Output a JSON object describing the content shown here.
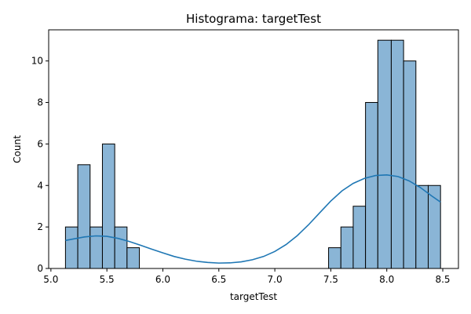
{
  "chart_data": {
    "type": "bar",
    "title": "Histograma: targetTest",
    "xlabel": "targetTest",
    "ylabel": "Count",
    "xlim": [
      4.98,
      8.64
    ],
    "ylim": [
      0,
      11.5
    ],
    "xticks": [
      5.0,
      5.5,
      6.0,
      6.5,
      7.0,
      7.5,
      8.0,
      8.5
    ],
    "xtick_labels": [
      "5.0",
      "5.5",
      "6.0",
      "6.5",
      "7.0",
      "7.5",
      "8.0",
      "8.5"
    ],
    "yticks": [
      0,
      2,
      4,
      6,
      8,
      10
    ],
    "ytick_labels": [
      "0",
      "2",
      "4",
      "6",
      "8",
      "10"
    ],
    "grid": false,
    "bins": [
      {
        "x0": 5.13,
        "x1": 5.24,
        "count": 2
      },
      {
        "x0": 5.24,
        "x1": 5.35,
        "count": 5
      },
      {
        "x0": 5.35,
        "x1": 5.46,
        "count": 2
      },
      {
        "x0": 5.46,
        "x1": 5.57,
        "count": 6
      },
      {
        "x0": 5.57,
        "x1": 5.68,
        "count": 2
      },
      {
        "x0": 5.68,
        "x1": 5.79,
        "count": 1
      },
      {
        "x0": 7.48,
        "x1": 7.59,
        "count": 1
      },
      {
        "x0": 7.59,
        "x1": 7.7,
        "count": 2
      },
      {
        "x0": 7.7,
        "x1": 7.81,
        "count": 3
      },
      {
        "x0": 7.81,
        "x1": 7.92,
        "count": 8
      },
      {
        "x0": 7.92,
        "x1": 8.04,
        "count": 11
      },
      {
        "x0": 8.04,
        "x1": 8.15,
        "count": 11
      },
      {
        "x0": 8.15,
        "x1": 8.26,
        "count": 10
      },
      {
        "x0": 8.26,
        "x1": 8.37,
        "count": 4
      },
      {
        "x0": 8.37,
        "x1": 8.48,
        "count": 4
      }
    ],
    "kde": {
      "x": [
        5.13,
        5.2,
        5.3,
        5.4,
        5.5,
        5.6,
        5.7,
        5.8,
        5.9,
        6.0,
        6.1,
        6.2,
        6.3,
        6.4,
        6.5,
        6.6,
        6.7,
        6.8,
        6.9,
        7.0,
        7.1,
        7.2,
        7.3,
        7.4,
        7.5,
        7.6,
        7.7,
        7.8,
        7.9,
        8.0,
        8.1,
        8.2,
        8.3,
        8.4,
        8.48
      ],
      "y": [
        1.35,
        1.42,
        1.52,
        1.57,
        1.55,
        1.45,
        1.3,
        1.12,
        0.93,
        0.75,
        0.58,
        0.45,
        0.35,
        0.29,
        0.26,
        0.27,
        0.32,
        0.42,
        0.58,
        0.82,
        1.15,
        1.58,
        2.1,
        2.68,
        3.25,
        3.74,
        4.1,
        4.34,
        4.48,
        4.51,
        4.43,
        4.22,
        3.9,
        3.5,
        3.2
      ]
    },
    "colors": {
      "bar_fill": "#8ab5d6",
      "kde_line": "#1f77b4"
    }
  }
}
